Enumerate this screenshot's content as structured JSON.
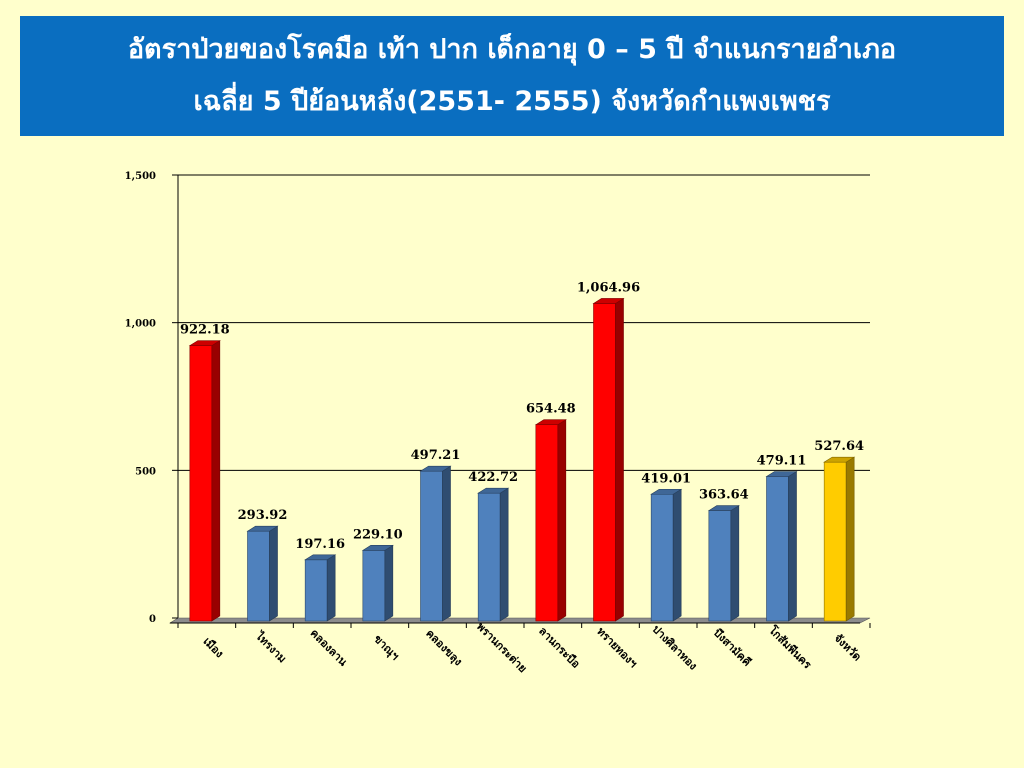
{
  "slide": {
    "title_line1": "อัตราป่วยของโรคมือ เท้า ปาก เด็กอายุ 0 – 5 ปี จำแนกรายอำเภอ",
    "title_line2": "เฉลี่ย 5 ปีย้อนหลัง(2551- 2555) จังหวัดกำแพงเพชร"
  },
  "colors": {
    "title_bg": "#0a6ec0",
    "background": "#ffffcc",
    "blue_bar": "#4f81bd",
    "red_bar": "#ff0000",
    "yellow_bar": "#ffcc00"
  },
  "chart_data": {
    "type": "bar",
    "title": "",
    "xlabel": "",
    "ylabel": "",
    "ylim": [
      0,
      1500
    ],
    "yticks": [
      0,
      500,
      1000,
      1500
    ],
    "ytick_labels": [
      "0",
      "500",
      "1,000",
      "1,500"
    ],
    "grid": "horizontal",
    "categories": [
      "เมือง",
      "ไทรงาม",
      "คลองลาน",
      "ขาณุฯ",
      "คลองขลุง",
      "พรานกระต่าย",
      "ลานกระบือ",
      "ทรายทองฯ",
      "ปางศิลาทอง",
      "บึงสามัคคี",
      "โกสัมพีนคร",
      "จังหวัด"
    ],
    "values": [
      922.18,
      293.92,
      197.16,
      229.1,
      497.21,
      422.72,
      654.48,
      1064.96,
      419.01,
      363.64,
      479.11,
      527.64
    ],
    "value_labels": [
      "922.18",
      "293.92",
      "197.16",
      "229.10",
      "497.21",
      "422.72",
      "654.48",
      "1,064.96",
      "419.01",
      "363.64",
      "479.11",
      "527.64"
    ],
    "bar_colors": [
      "red",
      "blue",
      "blue",
      "blue",
      "blue",
      "blue",
      "red",
      "red",
      "blue",
      "blue",
      "blue",
      "yellow"
    ]
  }
}
